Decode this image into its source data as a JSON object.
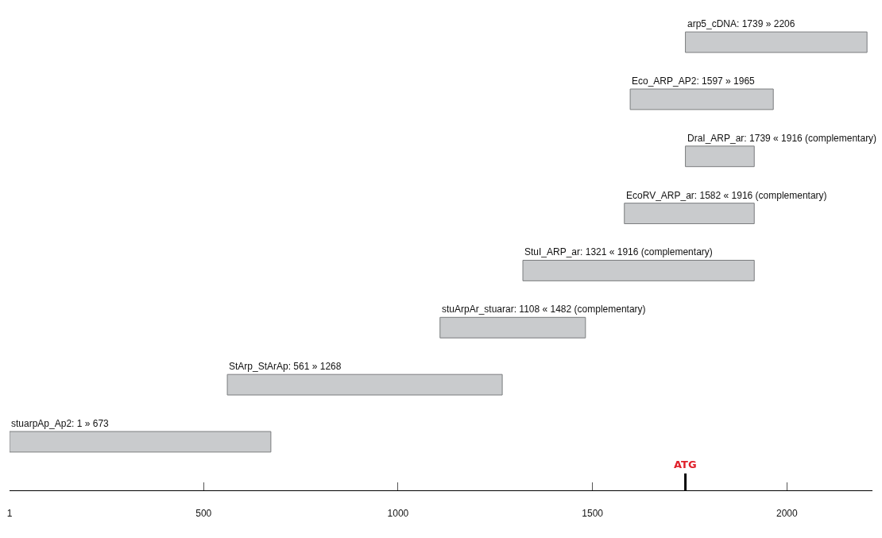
{
  "chart_data": {
    "type": "bar",
    "orientation": "horizontal",
    "categories": [
      null,
      null,
      null,
      null,
      null,
      null,
      null,
      null
    ],
    "base": [
      1739,
      1597,
      1739,
      1582,
      1321,
      1108,
      561,
      1
    ],
    "values": [
      467,
      368,
      177,
      334,
      595,
      374,
      707,
      672
    ],
    "value_labels": [
      "arp5_cDNA: 1739 » 2206",
      "Eco_ARP_AP2: 1597 » 1965",
      "DraI_ARP_ar: 1739 « 1916 (complementary)",
      "EcoRV_ARP_ar: 1582 « 1916 (complementary)",
      "StuI_ARP_ar: 1321 « 1916 (complementary)",
      "stuArpAr_stuarar: 1108 « 1482 (complementary)",
      "StArp_StArAp: 561 » 1268",
      "stuarpAp_Ap2: 1 » 673"
    ],
    "color": "#c9cbcd",
    "xlim": [
      1,
      2220
    ],
    "xticks": [
      1,
      500,
      1000,
      1500,
      2000
    ],
    "ref_lines": [
      {
        "axis": "x",
        "value": 1739,
        "label": "ATG"
      }
    ],
    "tick_labels": "x",
    "grid": false
  }
}
